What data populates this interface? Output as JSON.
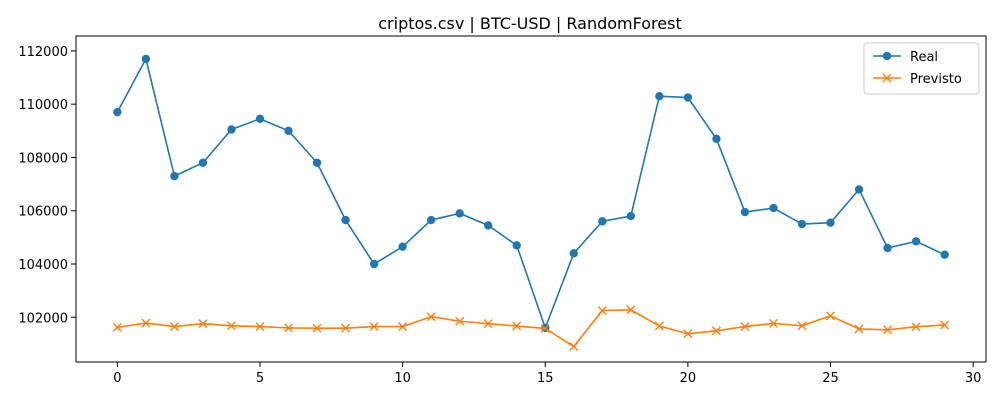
{
  "chart_data": {
    "type": "line",
    "title": "criptos.csv | BTC-USD | RandomForest",
    "xlabel": "",
    "ylabel": "",
    "x": [
      0,
      1,
      2,
      3,
      4,
      5,
      6,
      7,
      8,
      9,
      10,
      11,
      12,
      13,
      14,
      15,
      16,
      17,
      18,
      19,
      20,
      21,
      22,
      23,
      24,
      25,
      26,
      27,
      28,
      29
    ],
    "xlim": [
      -1.45,
      30.45
    ],
    "ylim": [
      100320,
      112560
    ],
    "xticks": [
      0,
      5,
      10,
      15,
      20,
      25,
      30
    ],
    "yticks": [
      102000,
      104000,
      106000,
      108000,
      110000,
      112000
    ],
    "grid": false,
    "legend_position": "upper right",
    "series": [
      {
        "name": "Real",
        "color": "#1f77b4",
        "marker": "circle",
        "values": [
          109700,
          111700,
          107300,
          107800,
          109050,
          109450,
          109000,
          107800,
          105650,
          104000,
          104650,
          105650,
          105900,
          105450,
          104700,
          101600,
          104400,
          105600,
          105800,
          110300,
          110250,
          108700,
          105950,
          106100,
          105500,
          105550,
          106800,
          104600,
          104850,
          104350
        ]
      },
      {
        "name": "Previsto",
        "color": "#ff7f0e",
        "marker": "x",
        "values": [
          101620,
          101780,
          101650,
          101760,
          101680,
          101650,
          101600,
          101590,
          101590,
          101650,
          101650,
          102020,
          101850,
          101760,
          101670,
          101580,
          100900,
          102250,
          102280,
          101670,
          101380,
          101490,
          101650,
          101770,
          101680,
          102050,
          101560,
          101530,
          101640,
          101710
        ]
      }
    ]
  }
}
